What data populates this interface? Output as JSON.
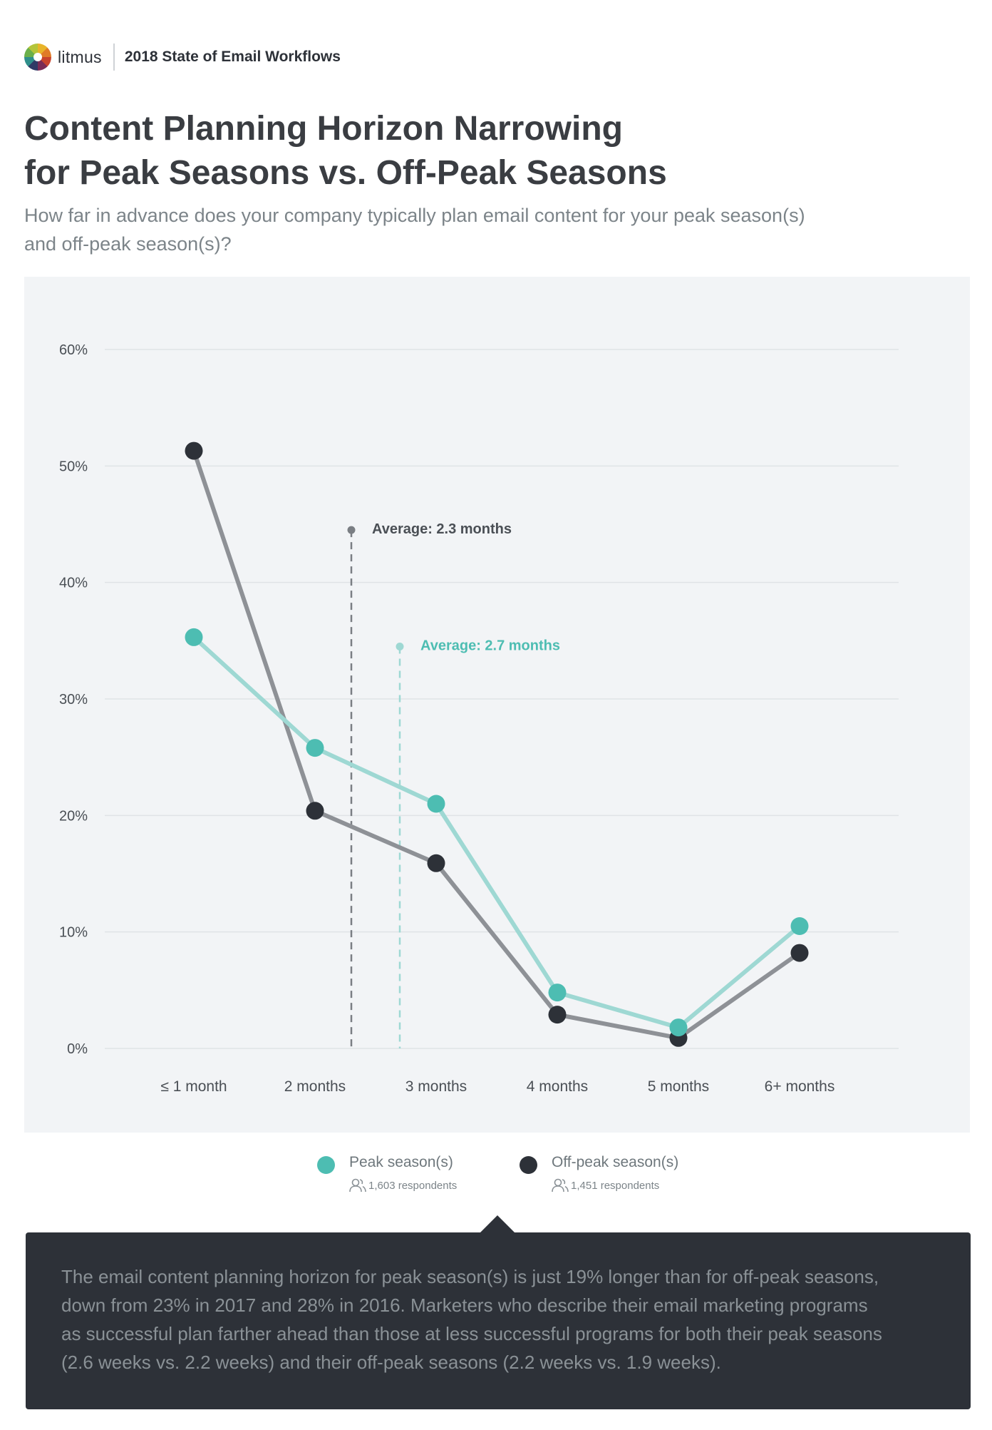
{
  "header": {
    "brand": "litmus",
    "report": "2018 State of Email Workflows"
  },
  "title": [
    "Content Planning Horizon Narrowing",
    "for Peak Seasons vs. Off-Peak Seasons"
  ],
  "subtitle": [
    "How far in advance does your company typically plan email content for your peak season(s)",
    "and off-peak season(s)?"
  ],
  "colors": {
    "peak": "#4dbdb2",
    "peak_line": "#9ed8d3",
    "offpeak": "#2d3138",
    "offpeak_line": "#8e9196",
    "grid": "#dfe3e6",
    "panel": "#f2f4f6"
  },
  "chart_data": {
    "type": "line",
    "categories": [
      "≤ 1 month",
      "2 months",
      "3 months",
      "4 months",
      "5 months",
      "6+ months"
    ],
    "series": [
      {
        "name": "Off-peak season(s)",
        "values": [
          51.3,
          20.4,
          15.9,
          2.9,
          0.9,
          8.2
        ]
      },
      {
        "name": "Peak season(s)",
        "values": [
          35.3,
          25.8,
          21.0,
          4.8,
          1.8,
          10.5
        ]
      }
    ],
    "ylim": [
      0,
      60
    ],
    "yticks": [
      0,
      10,
      20,
      30,
      40,
      50,
      60
    ],
    "ytick_labels": [
      "0%",
      "10%",
      "20%",
      "30%",
      "40%",
      "50%",
      "60%"
    ],
    "grid": true,
    "annotations": [
      {
        "text": "Average: 2.3 months",
        "x": 2.3,
        "y_top": 44.5,
        "series": "Off-peak season(s)"
      },
      {
        "text": "Average: 2.7 months",
        "x": 2.7,
        "y_top": 34.5,
        "series": "Peak season(s)"
      }
    ]
  },
  "legend": [
    {
      "label": "Peak season(s)",
      "respondents": "1,603 respondents"
    },
    {
      "label": "Off-peak season(s)",
      "respondents": "1,451 respondents"
    }
  ],
  "callout": [
    "The email content planning horizon for peak season(s) is just 19% longer than for off-peak seasons,",
    "down from 23% in 2017 and 28% in 2016. Marketers who describe their email marketing programs",
    "as successful plan farther ahead than those at less successful programs for both their peak seasons",
    "(2.6 weeks vs. 2.2 weeks) and their off-peak seasons (2.2 weeks vs. 1.9 weeks)."
  ]
}
